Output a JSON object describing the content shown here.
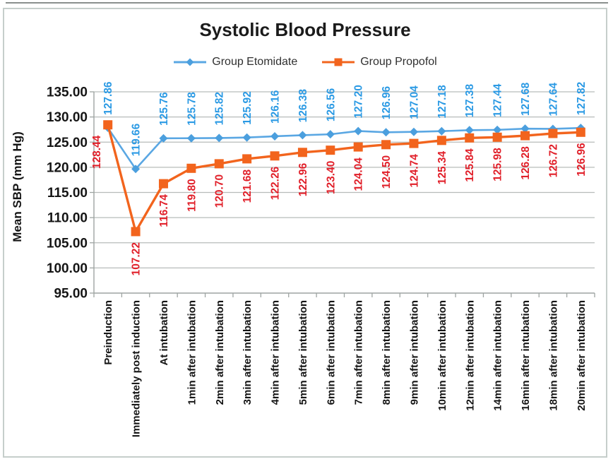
{
  "figure": {
    "top_rule_color": "#8a908e",
    "border_color": "#c6cecb",
    "background": "#ffffff"
  },
  "chart_data": {
    "type": "line",
    "title": "Systolic Blood Pressure",
    "xlabel": "",
    "ylabel": "Mean SBP (mm Hg)",
    "categories": [
      "Preinduction",
      "Immediately post induction",
      "At intubation",
      "1min after intubation",
      "2min after intubation",
      "3min after intubation",
      "4min after intubation",
      "5min after intubation",
      "6min after intubation",
      "7min after intubation",
      "8min after intubation",
      "9min after intubation",
      "10min after intubation",
      "12min after intubation",
      "14min after intubation",
      "16min after intubation",
      "18min after intubation",
      "20min after intubation"
    ],
    "series": [
      {
        "name": "Group Etomidate",
        "marker": "diamond",
        "color": "#5aa7e3",
        "marker_color": "#4b9fde",
        "label_color": "#2b9ae4",
        "label_position": "above",
        "values": [
          127.86,
          119.66,
          125.76,
          125.78,
          125.82,
          125.92,
          126.16,
          126.38,
          126.56,
          127.2,
          126.96,
          127.04,
          127.18,
          127.38,
          127.44,
          127.68,
          127.64,
          127.82
        ]
      },
      {
        "name": "Group Propofol",
        "marker": "square",
        "color": "#f2641d",
        "marker_color": "#f2641d",
        "label_color": "#e1202a",
        "label_position": "below",
        "values": [
          128.44,
          107.22,
          116.74,
          119.8,
          120.7,
          121.68,
          122.26,
          122.96,
          123.4,
          124.04,
          124.5,
          124.74,
          125.34,
          125.84,
          125.98,
          126.28,
          126.72,
          126.96
        ]
      }
    ],
    "ylim": [
      95,
      135
    ],
    "ytick_step": 5,
    "ytick_labels": [
      "135.00",
      "130.00",
      "125.00",
      "120.00",
      "115.00",
      "110.00",
      "105.00",
      "100.00",
      "95.00"
    ],
    "grid": true,
    "legend_position": "top",
    "gridline_color": "#b7bcba",
    "axis_color": "#9ea4a2",
    "tick_text_color": "#151515",
    "value_label_decimals": 2
  }
}
